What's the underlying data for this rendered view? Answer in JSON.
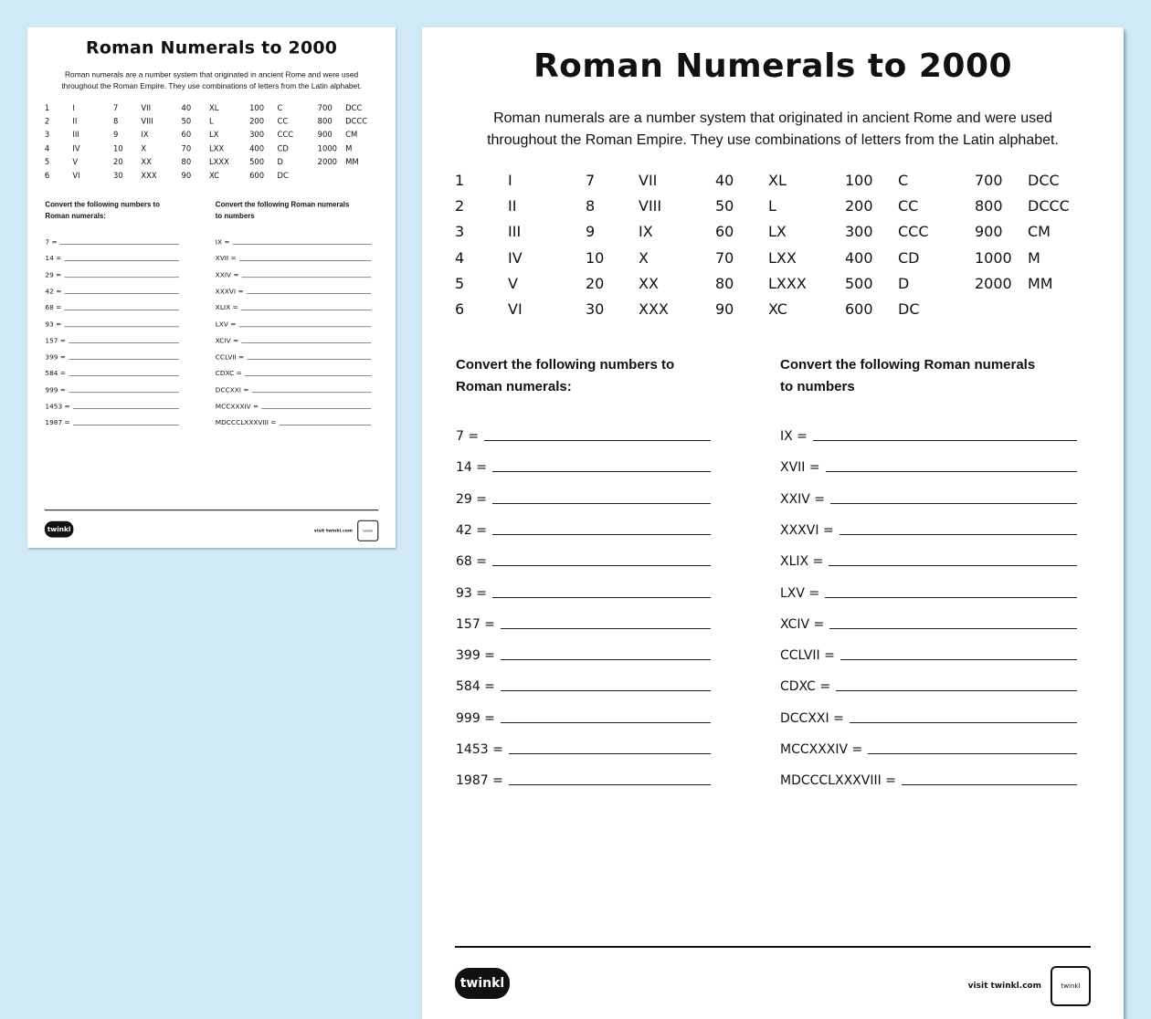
{
  "worksheet": {
    "title": "Roman Numerals to 2000",
    "intro_lines": [
      "Roman numerals are a number system that originated in ancient Rome and were used",
      "throughout the Roman Empire. They use combinations of letters from the Latin alphabet."
    ],
    "reference_columns": [
      [
        [
          "1",
          "I"
        ],
        [
          "2",
          "II"
        ],
        [
          "3",
          "III"
        ],
        [
          "4",
          "IV"
        ],
        [
          "5",
          "V"
        ],
        [
          "6",
          "VI"
        ]
      ],
      [
        [
          "7",
          "VII"
        ],
        [
          "8",
          "VIII"
        ],
        [
          "9",
          "IX"
        ],
        [
          "10",
          "X"
        ],
        [
          "20",
          "XX"
        ],
        [
          "30",
          "XXX"
        ]
      ],
      [
        [
          "40",
          "XL"
        ],
        [
          "50",
          "L"
        ],
        [
          "60",
          "LX"
        ],
        [
          "70",
          "LXX"
        ],
        [
          "80",
          "LXXX"
        ],
        [
          "90",
          "XC"
        ]
      ],
      [
        [
          "100",
          "C"
        ],
        [
          "200",
          "CC"
        ],
        [
          "300",
          "CCC"
        ],
        [
          "400",
          "CD"
        ],
        [
          "500",
          "D"
        ],
        [
          "600",
          "DC"
        ]
      ],
      [
        [
          "700",
          "DCC"
        ],
        [
          "800",
          "DCCC"
        ],
        [
          "900",
          "CM"
        ],
        [
          "1000",
          "M"
        ],
        [
          "2000",
          "MM"
        ]
      ]
    ],
    "section_left": {
      "heading_lines": [
        "Convert the following numbers to",
        "Roman numerals:"
      ],
      "items": [
        "7 =",
        "14 =",
        "29 =",
        "42 =",
        "68 =",
        "93 =",
        "157 =",
        "399 =",
        "584 =",
        "999 =",
        "1453 =",
        "1987 ="
      ]
    },
    "section_right": {
      "heading_lines": [
        "Convert the following Roman numerals",
        "to numbers"
      ],
      "items": [
        "IX =",
        "XVII =",
        "XXIV =",
        "XXXVI =",
        "XLIX =",
        "LXV =",
        "XCIV =",
        "CCLVII =",
        "CDXC =",
        "DCCXXI =",
        "MCCXXXIV =",
        "MDCCCLXXXVIII ="
      ]
    },
    "footer": {
      "logo": "twinkl",
      "visit": "visit twinkl.com",
      "badge": "twinkl"
    }
  },
  "colors": {
    "background": "#cfeaf6",
    "page": "#ffffff"
  }
}
